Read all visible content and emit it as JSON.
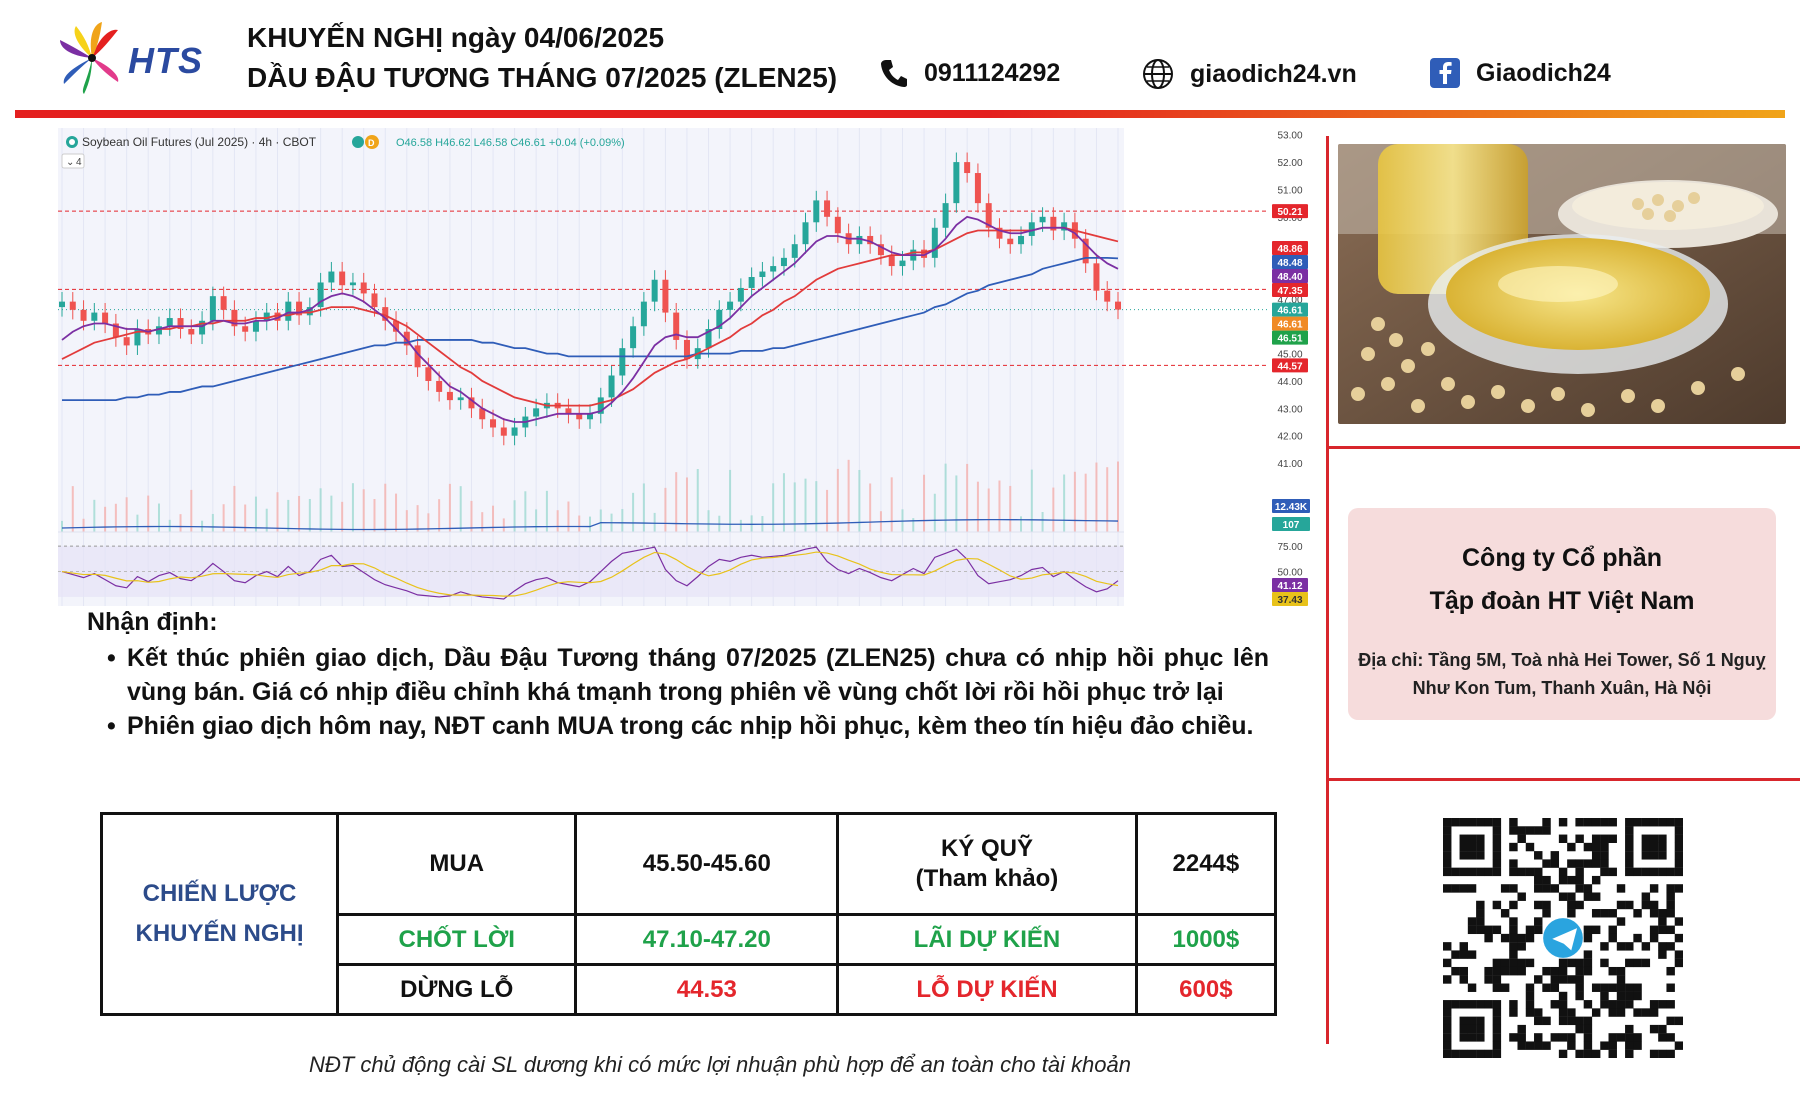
{
  "header": {
    "logo_text": "HTS",
    "title_line1": "KHUYẾN NGHỊ ngày 04/06/2025",
    "title_line2": "DẦU ĐẬU TƯƠNG THÁNG 07/2025 (ZLEN25)",
    "phone": "0911124292",
    "website": "giaodich24.vn",
    "facebook": "Giaodich24"
  },
  "colors": {
    "brand_red": "#e4201f",
    "brand_orange": "#f0a419",
    "up_candle": "#26a69a",
    "down_candle": "#ef5350",
    "ma_fast": "#7b2fa3",
    "ma_mid": "#e23b3b",
    "ma_slow": "#2f5db8"
  },
  "chart_data": {
    "type": "candlestick",
    "symbol_label": "Soybean Oil Futures (Jul 2025) · 4h · CBOT",
    "ohlc_label": "O46.58 H46.62 L46.58 C46.61 +0.04 (+0.09%)",
    "pane_indicator": "4",
    "y_ticks": [
      "53.00",
      "52.00",
      "51.00",
      "50.00",
      "49.00",
      "48.00",
      "47.00",
      "46.00",
      "45.00",
      "44.00",
      "43.00",
      "42.00",
      "41.00"
    ],
    "ylim": [
      40.6,
      53.1
    ],
    "price_tags": [
      {
        "value": 50.21,
        "label": "50.21",
        "color": "#e4262c"
      },
      {
        "value": 48.86,
        "label": "48.86",
        "color": "#e4262c"
      },
      {
        "value": 48.48,
        "label": "48.48",
        "color": "#2f5db8"
      },
      {
        "value": 48.4,
        "label": "48.40",
        "color": "#7b2fa3"
      },
      {
        "value": 47.35,
        "label": "47.35",
        "color": "#e4262c"
      },
      {
        "value": 46.61,
        "label": "46.61",
        "color": "#26a69a"
      },
      {
        "value": 46.61,
        "label": "46.61",
        "color": "#f08a24"
      },
      {
        "value": 46.51,
        "label": "46.51",
        "color": "#1fa24a"
      },
      {
        "value": 44.57,
        "label": "44.57",
        "color": "#e4262c"
      }
    ],
    "horizontal_levels": [
      50.21,
      47.35,
      44.57
    ],
    "closes": [
      46.9,
      46.6,
      46.2,
      46.5,
      46.1,
      45.6,
      45.3,
      45.9,
      45.7,
      46.0,
      46.3,
      45.9,
      45.7,
      46.2,
      47.1,
      46.6,
      46.0,
      45.8,
      46.2,
      46.5,
      46.2,
      46.9,
      46.4,
      46.7,
      47.6,
      48.0,
      47.5,
      47.6,
      47.2,
      46.7,
      46.2,
      45.8,
      45.3,
      44.5,
      44.0,
      43.6,
      43.3,
      43.4,
      43.0,
      42.6,
      42.3,
      42.0,
      42.3,
      42.7,
      43.0,
      43.2,
      43.0,
      42.8,
      42.6,
      42.8,
      43.4,
      44.2,
      45.2,
      46.0,
      46.9,
      47.7,
      46.5,
      45.5,
      44.8,
      45.2,
      45.9,
      46.6,
      46.9,
      47.4,
      47.8,
      48.0,
      48.2,
      48.5,
      49.0,
      49.8,
      50.6,
      50.0,
      49.4,
      49.0,
      49.3,
      49.0,
      48.6,
      48.2,
      48.4,
      48.8,
      48.5,
      49.6,
      50.5,
      52.0,
      51.6,
      50.5,
      49.6,
      49.2,
      49.0,
      49.3,
      49.8,
      50.0,
      49.5,
      49.8,
      49.2,
      48.3,
      47.3,
      46.9,
      46.61
    ],
    "ma_fast": [
      45.5,
      45.8,
      46.0,
      46.1,
      46.1,
      46.0,
      45.9,
      45.9,
      45.8,
      45.9,
      46.0,
      46.0,
      46.0,
      46.0,
      46.2,
      46.2,
      46.1,
      46.1,
      46.2,
      46.2,
      46.3,
      46.5,
      46.5,
      46.6,
      46.9,
      47.1,
      47.2,
      47.1,
      46.9,
      46.6,
      46.3,
      45.9,
      45.5,
      45.0,
      44.6,
      44.2,
      43.8,
      43.6,
      43.3,
      43.0,
      42.8,
      42.6,
      42.5,
      42.5,
      42.6,
      42.7,
      42.8,
      42.8,
      42.8,
      42.8,
      42.9,
      43.2,
      43.6,
      44.1,
      44.7,
      45.3,
      45.6,
      45.7,
      45.6,
      45.6,
      45.8,
      46.0,
      46.3,
      46.7,
      47.1,
      47.4,
      47.7,
      48.0,
      48.3,
      48.7,
      49.1,
      49.3,
      49.3,
      49.2,
      49.2,
      49.1,
      48.9,
      48.7,
      48.6,
      48.6,
      48.6,
      48.8,
      49.2,
      49.7,
      50.0,
      49.9,
      49.7,
      49.5,
      49.4,
      49.4,
      49.5,
      49.6,
      49.6,
      49.6,
      49.4,
      49.0,
      48.6,
      48.3,
      48.1
    ],
    "ma_mid": [
      44.8,
      45.0,
      45.2,
      45.4,
      45.5,
      45.6,
      45.7,
      45.8,
      45.8,
      45.9,
      45.9,
      46.0,
      46.0,
      46.1,
      46.1,
      46.2,
      46.2,
      46.2,
      46.3,
      46.3,
      46.4,
      46.4,
      46.5,
      46.5,
      46.6,
      46.7,
      46.7,
      46.7,
      46.6,
      46.5,
      46.4,
      46.2,
      46.0,
      45.7,
      45.4,
      45.1,
      44.8,
      44.5,
      44.3,
      44.0,
      43.8,
      43.6,
      43.4,
      43.3,
      43.2,
      43.1,
      43.1,
      43.1,
      43.1,
      43.1,
      43.2,
      43.3,
      43.5,
      43.7,
      44.0,
      44.3,
      44.5,
      44.7,
      44.8,
      45.0,
      45.2,
      45.4,
      45.6,
      45.9,
      46.1,
      46.4,
      46.6,
      46.9,
      47.1,
      47.4,
      47.7,
      47.9,
      48.1,
      48.2,
      48.3,
      48.4,
      48.5,
      48.6,
      48.6,
      48.7,
      48.7,
      48.8,
      49.0,
      49.2,
      49.4,
      49.5,
      49.5,
      49.5,
      49.5,
      49.5,
      49.5,
      49.6,
      49.6,
      49.6,
      49.5,
      49.4,
      49.3,
      49.2,
      49.1
    ],
    "ma_slow": [
      43.3,
      43.3,
      43.3,
      43.3,
      43.3,
      43.3,
      43.4,
      43.4,
      43.5,
      43.5,
      43.6,
      43.6,
      43.7,
      43.8,
      43.8,
      43.9,
      44.0,
      44.1,
      44.2,
      44.3,
      44.4,
      44.5,
      44.6,
      44.7,
      44.8,
      44.9,
      45.0,
      45.1,
      45.2,
      45.3,
      45.3,
      45.4,
      45.4,
      45.5,
      45.5,
      45.5,
      45.5,
      45.5,
      45.5,
      45.4,
      45.4,
      45.3,
      45.2,
      45.2,
      45.1,
      45.0,
      45.0,
      44.9,
      44.9,
      44.9,
      44.9,
      44.9,
      44.9,
      44.9,
      44.9,
      44.9,
      44.9,
      44.9,
      44.9,
      45.0,
      45.0,
      45.0,
      45.0,
      45.1,
      45.1,
      45.1,
      45.2,
      45.2,
      45.3,
      45.4,
      45.5,
      45.6,
      45.7,
      45.8,
      45.9,
      46.0,
      46.1,
      46.2,
      46.3,
      46.4,
      46.5,
      46.7,
      46.8,
      47.0,
      47.2,
      47.3,
      47.5,
      47.6,
      47.7,
      47.8,
      47.9,
      48.1,
      48.2,
      48.3,
      48.4,
      48.5,
      48.5,
      48.5,
      48.48
    ],
    "volume_tags": [
      {
        "label": "12.43K",
        "color": "#2f5db8"
      },
      {
        "label": "107",
        "color": "#26a69a"
      }
    ],
    "rsi_ticks": [
      "75.00",
      "50.00"
    ],
    "rsi_tags": [
      {
        "value": 41.12,
        "label": "41.12",
        "color": "#7b2fa3"
      },
      {
        "value": 37.43,
        "label": "37.43",
        "color": "#e8c21a"
      }
    ],
    "rsi": [
      50,
      47,
      44,
      48,
      42,
      36,
      34,
      45,
      40,
      46,
      49,
      43,
      41,
      48,
      58,
      50,
      41,
      39,
      46,
      50,
      45,
      55,
      46,
      50,
      62,
      66,
      55,
      56,
      49,
      42,
      37,
      34,
      31,
      27,
      26,
      25,
      26,
      30,
      27,
      25,
      24,
      23,
      31,
      38,
      42,
      44,
      39,
      37,
      35,
      40,
      50,
      60,
      68,
      70,
      72,
      74,
      52,
      41,
      36,
      45,
      55,
      62,
      60,
      64,
      66,
      64,
      65,
      66,
      69,
      72,
      74,
      60,
      52,
      48,
      53,
      49,
      44,
      41,
      47,
      53,
      48,
      64,
      68,
      72,
      62,
      46,
      38,
      40,
      42,
      46,
      52,
      54,
      45,
      50,
      42,
      35,
      30,
      33,
      41
    ]
  },
  "analysis": {
    "heading": "Nhận định:",
    "bullets": [
      "Kết thúc phiên giao dịch, Dầu Đậu Tương tháng 07/2025 (ZLEN25) chưa có nhịp hồi phục lên vùng bán. Giá có nhịp điều chỉnh khá tmạnh trong phiên về vùng chốt lời rồi hồi phục trở lại",
      "Phiên giao dịch hôm nay, NĐT canh MUA trong các nhịp hồi phục, kèm theo tín hiệu đảo chiều."
    ]
  },
  "strategy": {
    "label_line1": "CHIẾN LƯỢC",
    "label_line2": "KHUYẾN NGHỊ",
    "buy_label": "MUA",
    "buy_range": "45.50-45.60",
    "margin_label_line1": "KÝ QUỸ",
    "margin_label_line2": "(Tham khảo)",
    "margin_value": "2244$",
    "take_profit_label": "CHỐT LỜI",
    "take_profit_range": "47.10-47.20",
    "expected_profit_label": "LÃI DỰ KIẾN",
    "expected_profit_value": "1000$",
    "stop_loss_label": "DỪNG LỖ",
    "stop_loss_value": "44.53",
    "expected_loss_label": "LỖ DỰ KIẾN",
    "expected_loss_value": "600$"
  },
  "company": {
    "name_line1": "Công ty Cổ phần",
    "name_line2": "Tập đoàn HT Việt Nam",
    "address": "Địa chỉ: Tầng 5M, Toà nhà Hei Tower, Số 1 Nguỵ Như Kon Tum, Thanh Xuân, Hà Nội"
  },
  "footnote": "NĐT chủ động cài SL dương khi có mức lợi nhuận phù hợp để an toàn cho tài khoản"
}
